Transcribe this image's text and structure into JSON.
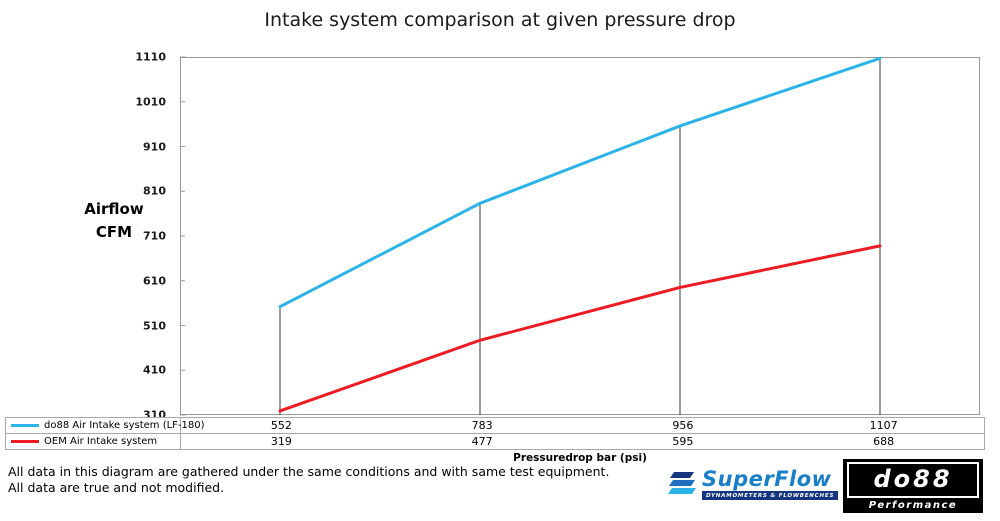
{
  "title": "Intake system comparison at given pressure drop",
  "chart_data": {
    "type": "line",
    "title": "Intake system comparison at given pressure drop",
    "ylabel_line1": "Airflow",
    "ylabel_line2": "CFM",
    "xlabel": "Pressuredrop bar (psi)",
    "ylim": [
      310,
      1110
    ],
    "yticks": [
      310,
      410,
      510,
      610,
      710,
      810,
      910,
      1010,
      1110
    ],
    "x_point_count": 4,
    "grid": false,
    "legend_position": "bottom-table",
    "series": [
      {
        "name": "do88 Air Intake system (LF-180)",
        "color": "#2cb3e8",
        "values": [
          552,
          783,
          956,
          1107
        ]
      },
      {
        "name": "OEM Air Intake system",
        "color": "#ed1c24",
        "values": [
          319,
          477,
          595,
          688
        ]
      }
    ],
    "marker_lines": "vertical black line from x-axis up to do88 series at each data point"
  },
  "footer": {
    "line1": "All data in this diagram are gathered under the same conditions and with same test equipment.",
    "line2": "All data are true and not modified."
  },
  "logos": {
    "superflow": {
      "name": "SuperFlow",
      "tagline": "DYNAMOMETERS & FLOWBENCHES"
    },
    "do88": {
      "name": "do88",
      "tagline": "Performance"
    }
  }
}
